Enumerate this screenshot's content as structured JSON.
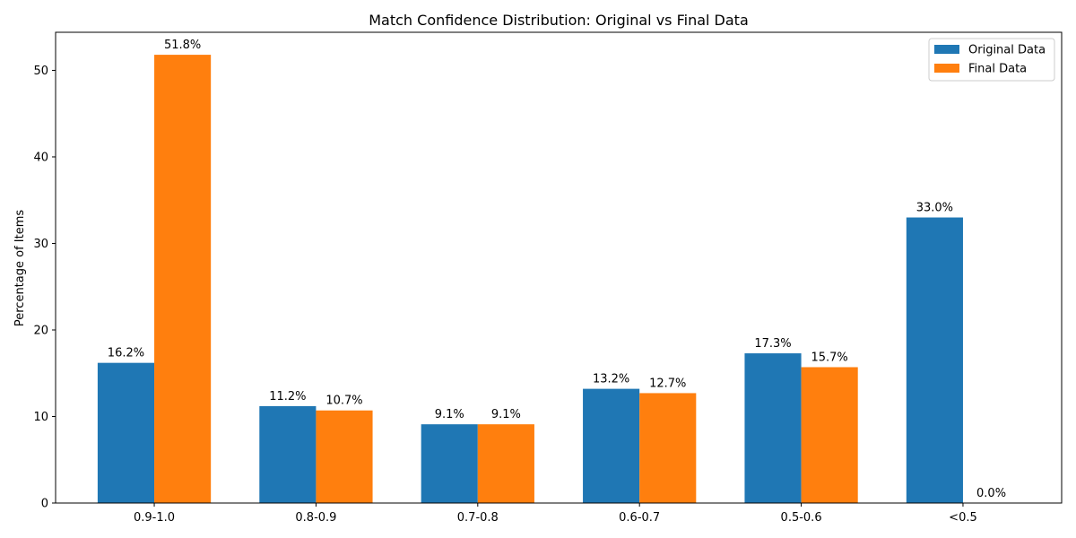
{
  "chart_data": {
    "type": "bar",
    "title": "Match Confidence Distribution: Original vs Final Data",
    "xlabel": "",
    "ylabel": "Percentage of Items",
    "categories": [
      "0.9-1.0",
      "0.8-0.9",
      "0.7-0.8",
      "0.6-0.7",
      "0.5-0.6",
      "<0.5"
    ],
    "series": [
      {
        "name": "Original Data",
        "color": "#1f77b4",
        "values": [
          16.2,
          11.2,
          9.1,
          13.2,
          17.3,
          33.0
        ],
        "labels": [
          "16.2%",
          "11.2%",
          "9.1%",
          "13.2%",
          "17.3%",
          "33.0%"
        ]
      },
      {
        "name": "Final Data",
        "color": "#ff7f0e",
        "values": [
          51.8,
          10.7,
          9.1,
          12.7,
          15.7,
          0.0
        ],
        "labels": [
          "51.8%",
          "10.7%",
          "9.1%",
          "12.7%",
          "15.7%",
          "0.0%"
        ]
      }
    ],
    "ylim": [
      0,
      54.4
    ],
    "yticks": [
      0,
      10,
      20,
      30,
      40,
      50
    ],
    "grid": false,
    "legend": "top-right"
  }
}
